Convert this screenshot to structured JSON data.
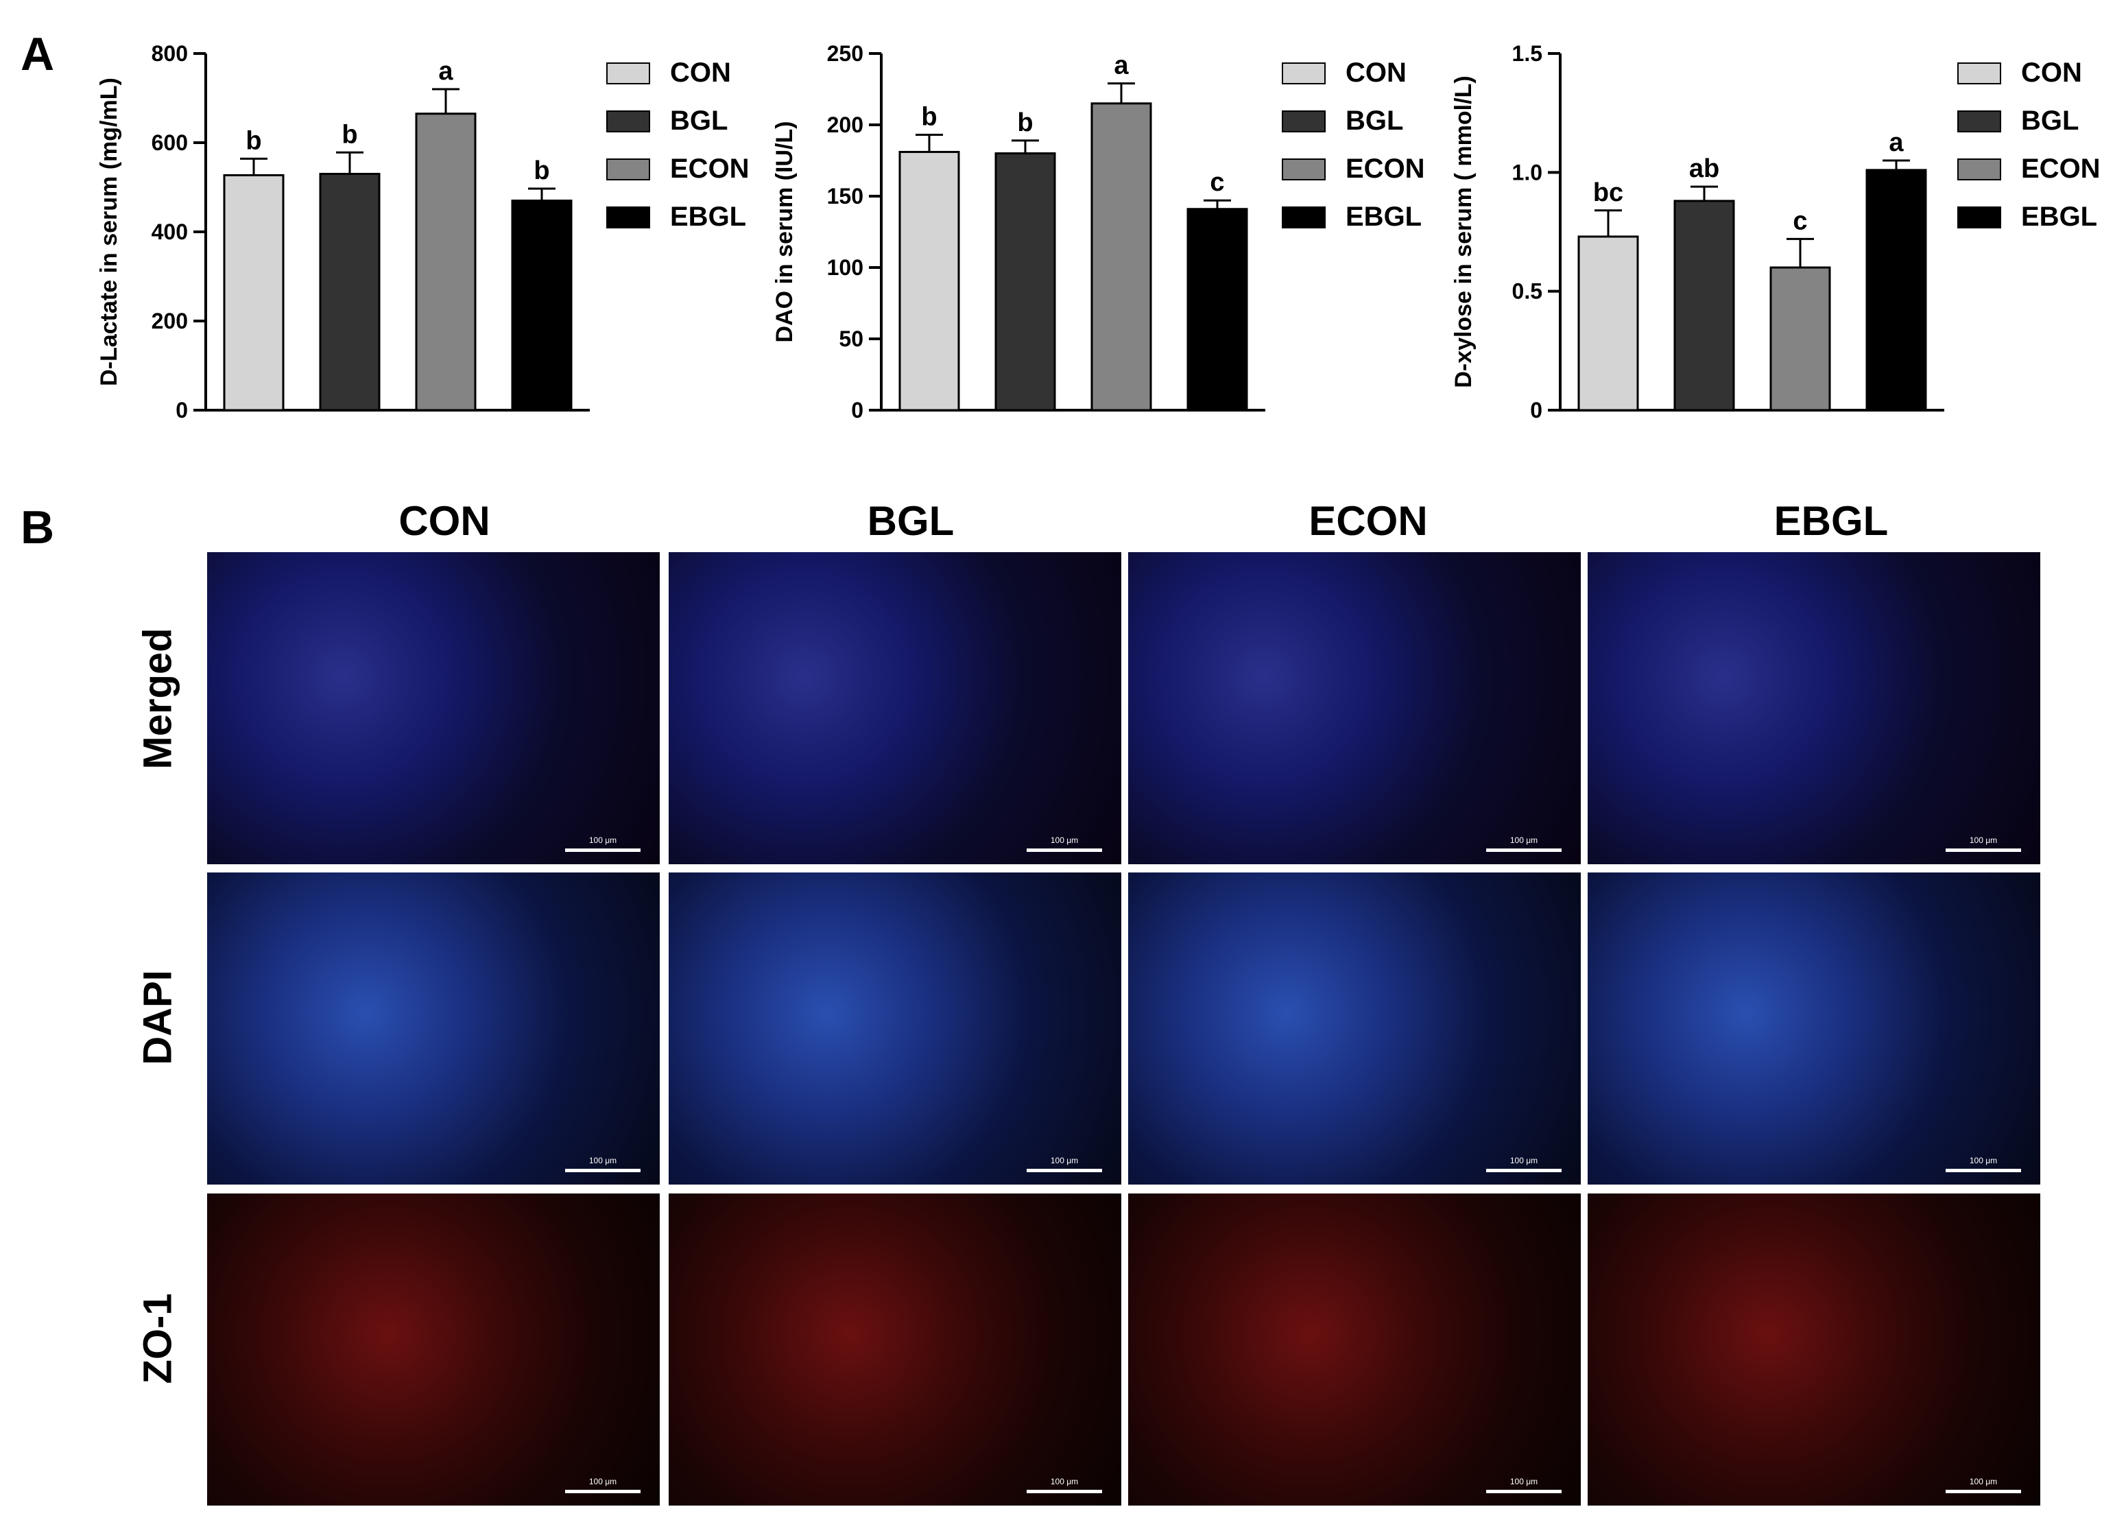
{
  "panels": {
    "a": "A",
    "b": "B"
  },
  "legend_colors": {
    "CON": "#d4d4d4",
    "BGL": "#333333",
    "ECON": "#848484",
    "EBGL": "#000000"
  },
  "chart_data": [
    {
      "type": "bar",
      "ylabel": "D-Lactate in serum (mg/mL)",
      "categories": [
        "CON",
        "BGL",
        "ECON",
        "EBGL"
      ],
      "values": [
        527,
        530,
        665,
        470
      ],
      "errors": [
        37,
        48,
        55,
        27
      ],
      "letters": [
        "b",
        "b",
        "a",
        "b"
      ],
      "ylim": [
        0,
        800
      ],
      "yticks": [
        "0",
        "200",
        "400",
        "600",
        "800"
      ],
      "ytick_values": [
        0,
        200,
        400,
        600,
        800
      ],
      "legend": [
        "CON",
        "BGL",
        "ECON",
        "EBGL"
      ],
      "legend_position": "right"
    },
    {
      "type": "bar",
      "ylabel": "DAO in serum (IU/L)",
      "categories": [
        "CON",
        "BGL",
        "ECON",
        "EBGL"
      ],
      "values": [
        181,
        180,
        215,
        141
      ],
      "errors": [
        12,
        9,
        14,
        6
      ],
      "letters": [
        "b",
        "b",
        "a",
        "c"
      ],
      "ylim": [
        0,
        250
      ],
      "yticks": [
        "0",
        "50",
        "100",
        "150",
        "200",
        "250"
      ],
      "ytick_values": [
        0,
        50,
        100,
        150,
        200,
        250
      ],
      "legend": [
        "CON",
        "BGL",
        "ECON",
        "EBGL"
      ],
      "legend_position": "right"
    },
    {
      "type": "bar",
      "ylabel": "D-xylose in serum ( mmol/L)",
      "categories": [
        "CON",
        "BGL",
        "ECON",
        "EBGL"
      ],
      "values": [
        0.73,
        0.88,
        0.6,
        1.01
      ],
      "errors": [
        0.11,
        0.06,
        0.12,
        0.04
      ],
      "letters": [
        "bc",
        "ab",
        "c",
        "a"
      ],
      "ylim": [
        0,
        1.5
      ],
      "yticks": [
        "0",
        "0.5",
        "1.0",
        "1.5"
      ],
      "ytick_values": [
        0,
        0.5,
        1.0,
        1.5
      ],
      "legend": [
        "CON",
        "BGL",
        "ECON",
        "EBGL"
      ],
      "legend_position": "right"
    }
  ],
  "micrographs": {
    "columns": [
      "CON",
      "BGL",
      "ECON",
      "EBGL"
    ],
    "rows": [
      "Merged",
      "DAPI",
      "ZO-1"
    ],
    "scale_label": "100 μm"
  }
}
